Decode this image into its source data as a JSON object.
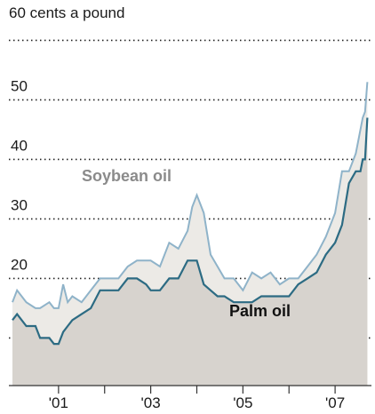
{
  "chart_data": {
    "type": "line",
    "title": "",
    "ylabel": "",
    "xlabel": "",
    "unit_label": "60 cents a pound",
    "y_ticks": [
      {
        "value": 20,
        "label": "20"
      },
      {
        "value": 30,
        "label": "30"
      },
      {
        "value": 40,
        "label": "40"
      },
      {
        "value": 50,
        "label": "50"
      }
    ],
    "gridlines": [
      10,
      20,
      30,
      40,
      50,
      60
    ],
    "ylim": [
      2,
      62
    ],
    "xlim": [
      2000.0,
      2007.75
    ],
    "x_ticks": [
      {
        "value": 2001,
        "label": "'01"
      },
      {
        "value": 2002,
        "label": ""
      },
      {
        "value": 2003,
        "label": "'03"
      },
      {
        "value": 2004,
        "label": ""
      },
      {
        "value": 2005,
        "label": "'05"
      },
      {
        "value": 2006,
        "label": ""
      },
      {
        "value": 2007,
        "label": "'07"
      }
    ],
    "grid": true,
    "series": [
      {
        "name": "Soybean oil",
        "color": "#8fb3c9",
        "x": [
          2000.0,
          2000.1,
          2000.3,
          2000.5,
          2000.6,
          2000.8,
          2000.9,
          2001.0,
          2001.1,
          2001.2,
          2001.3,
          2001.5,
          2001.7,
          2001.9,
          2002.1,
          2002.3,
          2002.5,
          2002.7,
          2002.9,
          2003.0,
          2003.2,
          2003.4,
          2003.6,
          2003.8,
          2003.9,
          2004.0,
          2004.15,
          2004.3,
          2004.45,
          2004.6,
          2004.8,
          2005.0,
          2005.2,
          2005.4,
          2005.6,
          2005.8,
          2006.0,
          2006.2,
          2006.4,
          2006.6,
          2006.8,
          2007.0,
          2007.15,
          2007.3,
          2007.45,
          2007.55,
          2007.6,
          2007.65,
          2007.7
        ],
        "values": [
          16,
          18,
          16,
          15,
          15,
          16,
          15,
          15,
          19,
          16,
          17,
          16,
          18,
          20,
          20,
          20,
          22,
          23,
          23,
          23,
          22,
          26,
          25,
          28,
          32,
          34,
          31,
          24,
          22,
          20,
          20,
          18,
          21,
          20,
          21,
          19,
          20,
          20,
          22,
          24,
          27,
          31,
          38,
          38,
          41,
          45,
          47,
          48,
          53
        ]
      },
      {
        "name": "Palm oil",
        "color": "#2c6b83",
        "x": [
          2000.0,
          2000.1,
          2000.3,
          2000.5,
          2000.6,
          2000.8,
          2000.9,
          2001.0,
          2001.1,
          2001.2,
          2001.3,
          2001.5,
          2001.7,
          2001.9,
          2002.1,
          2002.3,
          2002.5,
          2002.7,
          2002.9,
          2003.0,
          2003.2,
          2003.4,
          2003.6,
          2003.8,
          2003.9,
          2004.0,
          2004.15,
          2004.3,
          2004.45,
          2004.6,
          2004.8,
          2005.0,
          2005.2,
          2005.4,
          2005.6,
          2005.8,
          2006.0,
          2006.2,
          2006.4,
          2006.6,
          2006.8,
          2007.0,
          2007.15,
          2007.3,
          2007.45,
          2007.55,
          2007.6,
          2007.65,
          2007.7
        ],
        "values": [
          13,
          14,
          12,
          12,
          10,
          10,
          9,
          9,
          11,
          12,
          13,
          14,
          15,
          18,
          18,
          18,
          20,
          20,
          19,
          18,
          18,
          20,
          20,
          23,
          23,
          23,
          19,
          18,
          17,
          17,
          16,
          16,
          16,
          17,
          17,
          17,
          17,
          19,
          20,
          21,
          24,
          26,
          29,
          36,
          38,
          38,
          40,
          40,
          47
        ]
      }
    ],
    "annotations": [
      {
        "text": "Soybean oil",
        "series": "Soybean oil"
      },
      {
        "text": "Palm oil",
        "series": "Palm oil"
      }
    ]
  }
}
